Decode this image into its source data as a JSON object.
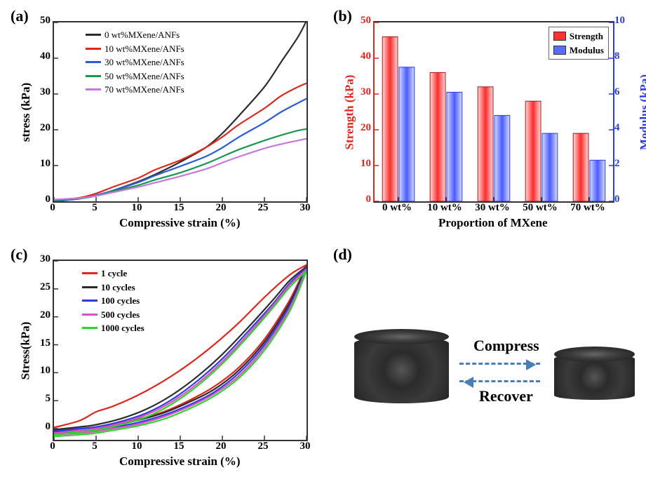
{
  "panels": {
    "a": {
      "label": "(a)",
      "type": "line",
      "xlabel": "Compressive strain (%)",
      "ylabel": "stress (kPa)",
      "xlim": [
        0,
        30
      ],
      "xtick_step": 5,
      "ylim": [
        0,
        50
      ],
      "ytick_step": 10,
      "background": "#ffffff",
      "line_width": 2.2,
      "series": [
        {
          "label": "0 wt%MXene/ANFs",
          "color": "#2c2c2c",
          "data": [
            [
              0,
              0
            ],
            [
              3,
              0.8
            ],
            [
              5,
              1.5
            ],
            [
              7,
              3
            ],
            [
              10,
              5.5
            ],
            [
              12,
              7.5
            ],
            [
              15,
              11
            ],
            [
              18,
              15
            ],
            [
              20,
              19
            ],
            [
              22,
              24
            ],
            [
              25,
              32
            ],
            [
              27,
              39
            ],
            [
              29,
              46
            ],
            [
              30,
              50.5
            ]
          ]
        },
        {
          "label": "10 wt%MXene/ANFs",
          "color": "#e1261c",
          "data": [
            [
              0,
              0.3
            ],
            [
              3,
              1
            ],
            [
              5,
              2.2
            ],
            [
              7,
              4
            ],
            [
              10,
              6.5
            ],
            [
              12,
              8.8
            ],
            [
              15,
              11.5
            ],
            [
              18,
              15
            ],
            [
              20,
              18
            ],
            [
              22,
              21.5
            ],
            [
              25,
              26
            ],
            [
              27,
              29.5
            ],
            [
              29,
              32
            ],
            [
              30,
              33
            ]
          ]
        },
        {
          "label": "30 wt%MXene/ANFs",
          "color": "#2a5cd6",
          "data": [
            [
              0,
              0
            ],
            [
              3,
              0.7
            ],
            [
              5,
              1.7
            ],
            [
              7,
              3
            ],
            [
              10,
              5.3
            ],
            [
              12,
              7.2
            ],
            [
              15,
              9.8
            ],
            [
              18,
              12.5
            ],
            [
              20,
              15
            ],
            [
              22,
              18
            ],
            [
              25,
              22
            ],
            [
              27,
              25
            ],
            [
              29,
              27.5
            ],
            [
              30,
              28.7
            ]
          ]
        },
        {
          "label": "50 wt%MXene/ANFs",
          "color": "#1a9850",
          "data": [
            [
              0,
              0.3
            ],
            [
              3,
              0.8
            ],
            [
              5,
              1.5
            ],
            [
              7,
              2.8
            ],
            [
              10,
              4.5
            ],
            [
              12,
              6
            ],
            [
              15,
              8
            ],
            [
              18,
              10.5
            ],
            [
              20,
              12.5
            ],
            [
              22,
              14.5
            ],
            [
              25,
              17
            ],
            [
              27,
              18.5
            ],
            [
              29,
              19.8
            ],
            [
              30,
              20.2
            ]
          ]
        },
        {
          "label": "70 wt%MXene/ANFs",
          "color": "#c678dd",
          "data": [
            [
              0,
              0.5
            ],
            [
              3,
              0.9
            ],
            [
              5,
              1.5
            ],
            [
              7,
              2.5
            ],
            [
              10,
              4
            ],
            [
              12,
              5.2
            ],
            [
              15,
              7
            ],
            [
              18,
              9
            ],
            [
              20,
              10.8
            ],
            [
              22,
              12.5
            ],
            [
              25,
              14.8
            ],
            [
              27,
              16
            ],
            [
              29,
              17
            ],
            [
              30,
              17.5
            ]
          ]
        }
      ]
    },
    "b": {
      "label": "(b)",
      "type": "bar",
      "xlabel": "Proportion of MXene",
      "ylabel_left": "Strength (kPa)",
      "ylabel_right": "Modulus (kPa)",
      "y_left": {
        "lim": [
          0,
          50
        ],
        "step": 10,
        "color": "#e1261c"
      },
      "y_right": {
        "lim": [
          0,
          10
        ],
        "step": 2,
        "color": "#2a3ce6"
      },
      "categories": [
        "0 wt%",
        "10 wt%",
        "30 wt%",
        "50 wt%",
        "70 wt%"
      ],
      "bars": {
        "strength": {
          "color_fill": "#ff3030",
          "color_edge": "#a01818",
          "values": [
            46,
            36,
            32,
            28,
            19
          ]
        },
        "modulus": {
          "color_fill": "#5b6cff",
          "color_edge": "#2a3ce6",
          "values": [
            7.5,
            6.1,
            4.8,
            3.8,
            2.3
          ]
        }
      },
      "legend": [
        {
          "label": "Strength",
          "fill": "#ff3030"
        },
        {
          "label": "Modulus",
          "fill": "#5b6cff"
        }
      ],
      "bar_width": 0.35
    },
    "c": {
      "label": "(c)",
      "type": "line-hysteresis",
      "xlabel": "Compressive strain (%)",
      "ylabel": "Stress(kPa)",
      "xlim": [
        0,
        30
      ],
      "xtick_step": 5,
      "ylim": [
        -2,
        30
      ],
      "yticks": [
        0,
        5,
        10,
        15,
        20,
        25,
        30
      ],
      "line_width": 2.2,
      "series": [
        {
          "label": "1 cycle",
          "color": "#e1261c",
          "load": [
            [
              0,
              0.2
            ],
            [
              3,
              1.4
            ],
            [
              5,
              3
            ],
            [
              7,
              4
            ],
            [
              10,
              6
            ],
            [
              13,
              8.5
            ],
            [
              16,
              11.5
            ],
            [
              19,
              15
            ],
            [
              22,
              19
            ],
            [
              25,
              23.5
            ],
            [
              28,
              27.5
            ],
            [
              30,
              29.3
            ]
          ],
          "unload": [
            [
              30,
              29.3
            ],
            [
              28,
              23
            ],
            [
              25,
              16
            ],
            [
              22,
              11
            ],
            [
              19,
              7.5
            ],
            [
              16,
              5
            ],
            [
              13,
              3
            ],
            [
              10,
              1.7
            ],
            [
              7,
              0.8
            ],
            [
              5,
              0.3
            ],
            [
              3,
              0
            ],
            [
              0,
              -0.3
            ]
          ]
        },
        {
          "label": "10 cycles",
          "color": "#2c2c2c",
          "load": [
            [
              0,
              -0.2
            ],
            [
              3,
              0.3
            ],
            [
              5,
              0.7
            ],
            [
              8,
              1.8
            ],
            [
              11,
              3.5
            ],
            [
              14,
              6
            ],
            [
              17,
              9.3
            ],
            [
              20,
              13.3
            ],
            [
              23,
              18
            ],
            [
              26,
              23
            ],
            [
              28,
              26.5
            ],
            [
              30,
              29
            ]
          ],
          "unload": [
            [
              30,
              29
            ],
            [
              28,
              22.5
            ],
            [
              25,
              15.5
            ],
            [
              22,
              10.5
            ],
            [
              19,
              7
            ],
            [
              16,
              4.7
            ],
            [
              13,
              2.8
            ],
            [
              10,
              1.5
            ],
            [
              7,
              0.5
            ],
            [
              5,
              0
            ],
            [
              3,
              -0.3
            ],
            [
              0,
              -0.6
            ]
          ]
        },
        {
          "label": "100 cycles",
          "color": "#2a3ce6",
          "load": [
            [
              0,
              -0.5
            ],
            [
              3,
              0
            ],
            [
              5,
              0.3
            ],
            [
              8,
              1.3
            ],
            [
              11,
              2.8
            ],
            [
              14,
              5.2
            ],
            [
              17,
              8.5
            ],
            [
              20,
              12.5
            ],
            [
              23,
              17.3
            ],
            [
              26,
              22.3
            ],
            [
              28,
              26
            ],
            [
              30,
              28.8
            ]
          ],
          "unload": [
            [
              30,
              28.8
            ],
            [
              28,
              22
            ],
            [
              25,
              15
            ],
            [
              22,
              10
            ],
            [
              19,
              6.5
            ],
            [
              16,
              4.2
            ],
            [
              13,
              2.4
            ],
            [
              10,
              1.1
            ],
            [
              7,
              0.2
            ],
            [
              5,
              -0.3
            ],
            [
              3,
              -0.6
            ],
            [
              0,
              -0.9
            ]
          ]
        },
        {
          "label": "500 cycles",
          "color": "#e54cc7",
          "load": [
            [
              0,
              -0.8
            ],
            [
              3,
              -0.3
            ],
            [
              5,
              0
            ],
            [
              8,
              1
            ],
            [
              11,
              2.5
            ],
            [
              14,
              4.8
            ],
            [
              17,
              8
            ],
            [
              20,
              12
            ],
            [
              23,
              16.8
            ],
            [
              26,
              22
            ],
            [
              28,
              25.7
            ],
            [
              30,
              28.5
            ]
          ],
          "unload": [
            [
              30,
              28.5
            ],
            [
              28,
              21.5
            ],
            [
              25,
              14.5
            ],
            [
              22,
              9.5
            ],
            [
              19,
              6.2
            ],
            [
              16,
              3.9
            ],
            [
              13,
              2.1
            ],
            [
              10,
              0.8
            ],
            [
              7,
              0
            ],
            [
              5,
              -0.5
            ],
            [
              3,
              -0.8
            ],
            [
              0,
              -1.1
            ]
          ]
        },
        {
          "label": "1000 cycles",
          "color": "#2bd62b",
          "load": [
            [
              0,
              -1.1
            ],
            [
              3,
              -0.6
            ],
            [
              5,
              -0.3
            ],
            [
              8,
              0.7
            ],
            [
              11,
              2.1
            ],
            [
              14,
              4.4
            ],
            [
              17,
              7.6
            ],
            [
              20,
              11.6
            ],
            [
              23,
              16.4
            ],
            [
              26,
              21.6
            ],
            [
              28,
              25.3
            ],
            [
              30,
              28.2
            ]
          ],
          "unload": [
            [
              30,
              28.2
            ],
            [
              28,
              21
            ],
            [
              25,
              14
            ],
            [
              22,
              9.1
            ],
            [
              19,
              5.8
            ],
            [
              16,
              3.5
            ],
            [
              13,
              1.7
            ],
            [
              10,
              0.5
            ],
            [
              7,
              -0.3
            ],
            [
              5,
              -0.8
            ],
            [
              3,
              -1.1
            ],
            [
              0,
              -1.4
            ]
          ]
        }
      ]
    },
    "d": {
      "label": "(d)",
      "type": "infographic",
      "compress_label": "Compress",
      "recover_label": "Recover",
      "arrow_color": "#4a7eb8",
      "cyl_left_h": 95,
      "cyl_right_h": 65
    }
  }
}
